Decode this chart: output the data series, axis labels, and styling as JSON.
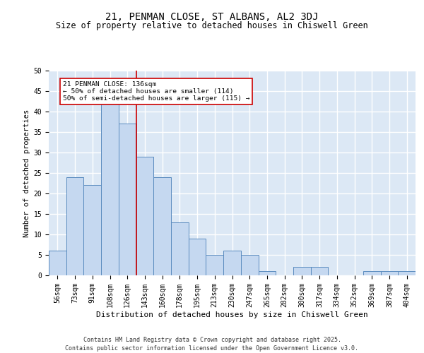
{
  "title1": "21, PENMAN CLOSE, ST ALBANS, AL2 3DJ",
  "title2": "Size of property relative to detached houses in Chiswell Green",
  "xlabel": "Distribution of detached houses by size in Chiswell Green",
  "ylabel": "Number of detached properties",
  "categories": [
    "56sqm",
    "73sqm",
    "91sqm",
    "108sqm",
    "126sqm",
    "143sqm",
    "160sqm",
    "178sqm",
    "195sqm",
    "213sqm",
    "230sqm",
    "247sqm",
    "265sqm",
    "282sqm",
    "300sqm",
    "317sqm",
    "334sqm",
    "352sqm",
    "369sqm",
    "387sqm",
    "404sqm"
  ],
  "values": [
    6,
    24,
    22,
    42,
    37,
    29,
    24,
    13,
    9,
    5,
    6,
    5,
    1,
    0,
    2,
    2,
    0,
    0,
    1,
    1,
    1
  ],
  "bar_color": "#c5d8f0",
  "bar_edge_color": "#5a8bbf",
  "background_color": "#dce8f5",
  "grid_color": "#ffffff",
  "vline_position": 4.5,
  "vline_color": "#cc0000",
  "annotation_text": "21 PENMAN CLOSE: 136sqm\n← 50% of detached houses are smaller (114)\n50% of semi-detached houses are larger (115) →",
  "annotation_box_color": "#ffffff",
  "annotation_box_edge": "#cc0000",
  "footer1": "Contains HM Land Registry data © Crown copyright and database right 2025.",
  "footer2": "Contains public sector information licensed under the Open Government Licence v3.0.",
  "ylim": [
    0,
    50
  ],
  "yticks": [
    0,
    5,
    10,
    15,
    20,
    25,
    30,
    35,
    40,
    45,
    50
  ],
  "title1_fontsize": 10,
  "title2_fontsize": 8.5,
  "ylabel_fontsize": 7.5,
  "xlabel_fontsize": 8,
  "tick_fontsize": 7,
  "footer_fontsize": 6
}
